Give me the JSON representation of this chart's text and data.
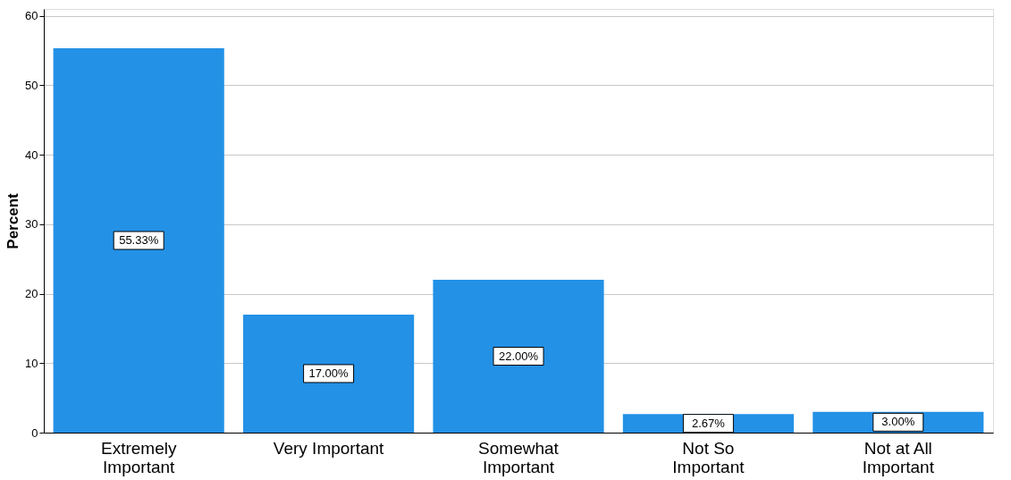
{
  "chart_data": {
    "type": "bar",
    "ylabel": "Percent",
    "categories": [
      "Extremely\nImportant",
      "Very Important",
      "Somewhat\nImportant",
      "Not So\nImportant",
      "Not at All\nImportant"
    ],
    "values": [
      55.33,
      17.0,
      22.0,
      2.67,
      3.0
    ],
    "value_labels": [
      "55.33%",
      "17.00%",
      "22.00%",
      "2.67%",
      "3.00%"
    ],
    "color": "#2391e6",
    "ylim": [
      0,
      61
    ],
    "yticks": [
      0,
      10,
      20,
      30,
      40,
      50,
      60
    ],
    "grid": "y"
  }
}
